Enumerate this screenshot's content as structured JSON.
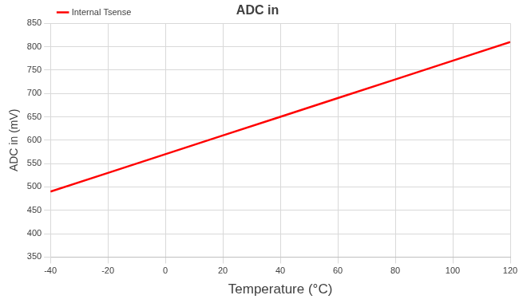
{
  "chart_data": {
    "type": "line",
    "title": "ADC in",
    "x_label": "Temperature (°C)",
    "y_label": "ADC in (mV)",
    "x": [
      -40,
      -20,
      0,
      20,
      40,
      60,
      80,
      100,
      120
    ],
    "series": [
      {
        "name": "Internal Tsense",
        "color": "#ff0000",
        "values": [
          490,
          530,
          570,
          610,
          650,
          690,
          730,
          770,
          810
        ]
      }
    ],
    "xlim": [
      -40,
      120
    ],
    "xticks": [
      -40,
      -20,
      0,
      20,
      40,
      60,
      80,
      100,
      120
    ],
    "ylim": [
      350,
      850
    ],
    "yticks": [
      350,
      400,
      450,
      500,
      550,
      600,
      650,
      700,
      750,
      800,
      850
    ],
    "grid": true,
    "legend": "upper left",
    "marker": "none",
    "line_style": "solid"
  }
}
